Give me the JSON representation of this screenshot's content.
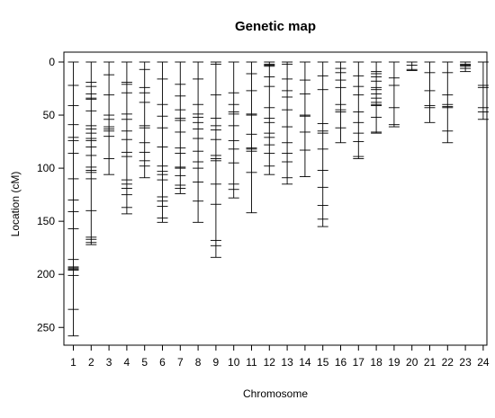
{
  "chart_data": {
    "type": "scatter",
    "title": "Genetic map",
    "xlabel": "Chromosome",
    "ylabel": "Location (cM)",
    "y_reversed": true,
    "ylim": [
      0,
      268
    ],
    "y_ticks": [
      0,
      50,
      100,
      150,
      200,
      250
    ],
    "grid": false,
    "legend": "none",
    "chromosomes": [
      {
        "name": "1",
        "length": 258,
        "markers": [
          0,
          22,
          41,
          59,
          71,
          74,
          86,
          110,
          130,
          141,
          157,
          186,
          193,
          194,
          195,
          196,
          201,
          233,
          258
        ]
      },
      {
        "name": "2",
        "length": 172,
        "markers": [
          0,
          19,
          23,
          30,
          34,
          35,
          46,
          60,
          63,
          67,
          72,
          74,
          80,
          88,
          99,
          102,
          104,
          110,
          140,
          165,
          167,
          170,
          172
        ]
      },
      {
        "name": "3",
        "length": 106,
        "markers": [
          0,
          12,
          31,
          50,
          54,
          61,
          63,
          65,
          70,
          91,
          106
        ]
      },
      {
        "name": "4",
        "length": 143,
        "markers": [
          0,
          19,
          21,
          29,
          49,
          54,
          65,
          73,
          85,
          89,
          111,
          115,
          119,
          125,
          137,
          143
        ]
      },
      {
        "name": "5",
        "length": 109,
        "markers": [
          0,
          7,
          24,
          29,
          38,
          60,
          62,
          76,
          85,
          93,
          98,
          109
        ]
      },
      {
        "name": "6",
        "length": 151,
        "markers": [
          0,
          16,
          40,
          51,
          62,
          80,
          98,
          103,
          106,
          111,
          127,
          131,
          136,
          147,
          151
        ]
      },
      {
        "name": "7",
        "length": 124,
        "markers": [
          0,
          21,
          32,
          45,
          53,
          55,
          66,
          81,
          86,
          99,
          100,
          107,
          116,
          119,
          124
        ]
      },
      {
        "name": "8",
        "length": 151,
        "markers": [
          0,
          16,
          40,
          49,
          52,
          57,
          63,
          72,
          84,
          94,
          100,
          113,
          131,
          151
        ]
      },
      {
        "name": "9",
        "length": 184,
        "markers": [
          0,
          2,
          31,
          53,
          60,
          64,
          73,
          88,
          91,
          93,
          115,
          134,
          168,
          173,
          184
        ]
      },
      {
        "name": "10",
        "length": 128,
        "markers": [
          0,
          29,
          40,
          47,
          49,
          60,
          74,
          82,
          95,
          115,
          120,
          128
        ]
      },
      {
        "name": "11",
        "length": 142,
        "markers": [
          0,
          11,
          27,
          49,
          50,
          68,
          81,
          82,
          84,
          104,
          142
        ]
      },
      {
        "name": "12",
        "length": 106,
        "markers": [
          0,
          2,
          3,
          4,
          14,
          23,
          43,
          53,
          57,
          67,
          71,
          78,
          86,
          98,
          106
        ]
      },
      {
        "name": "13",
        "length": 115,
        "markers": [
          0,
          2,
          16,
          27,
          33,
          45,
          61,
          76,
          86,
          94,
          109,
          115
        ]
      },
      {
        "name": "14",
        "length": 108,
        "markers": [
          0,
          17,
          30,
          50,
          51,
          66,
          83,
          108
        ]
      },
      {
        "name": "15",
        "length": 155,
        "markers": [
          0,
          13,
          26,
          58,
          65,
          67,
          82,
          102,
          118,
          135,
          148,
          155
        ]
      },
      {
        "name": "16",
        "length": 76,
        "markers": [
          0,
          6,
          10,
          17,
          24,
          40,
          45,
          47,
          62,
          76
        ]
      },
      {
        "name": "17",
        "length": 91,
        "markers": [
          0,
          13,
          23,
          31,
          47,
          57,
          67,
          75,
          89,
          91
        ]
      },
      {
        "name": "18",
        "length": 67,
        "markers": [
          0,
          9,
          11,
          14,
          18,
          24,
          26,
          30,
          34,
          38,
          40,
          41,
          52,
          66,
          67
        ]
      },
      {
        "name": "19",
        "length": 61,
        "markers": [
          0,
          15,
          22,
          43,
          59,
          61
        ]
      },
      {
        "name": "20",
        "length": 8,
        "markers": [
          0,
          3,
          7,
          8
        ]
      },
      {
        "name": "21",
        "length": 57,
        "markers": [
          0,
          10,
          27,
          41,
          43,
          57
        ]
      },
      {
        "name": "22",
        "length": 76,
        "markers": [
          0,
          10,
          31,
          40,
          42,
          43,
          65,
          76
        ]
      },
      {
        "name": "23",
        "length": 9,
        "markers": [
          0,
          2,
          3,
          4,
          6,
          9
        ]
      },
      {
        "name": "24",
        "length": 54,
        "markers": [
          0,
          22,
          24,
          43,
          47,
          54
        ]
      }
    ]
  }
}
